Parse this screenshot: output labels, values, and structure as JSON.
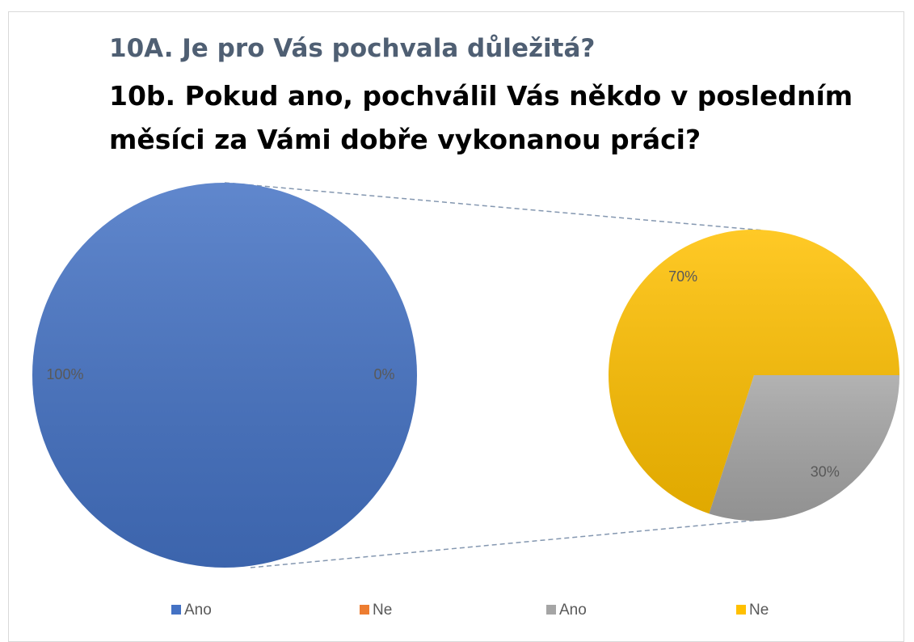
{
  "chart_data": [
    {
      "type": "pie",
      "title": "10A. Je pro Vás pochvala důležitá?",
      "categories": [
        "Ano",
        "Ne"
      ],
      "values": [
        100,
        0
      ],
      "value_labels": [
        "100%",
        "0%"
      ],
      "colors": [
        "#4472c4",
        "#ed7d31"
      ]
    },
    {
      "type": "pie",
      "title": "10b. Pokud ano, pochválil Vás někdo v posledním měsíci za Vámi dobře vykonanou práci?",
      "categories": [
        "Ano",
        "Ne"
      ],
      "values": [
        30,
        70
      ],
      "value_labels": [
        "30%",
        "70%"
      ],
      "colors": [
        "#a5a5a5",
        "#ffc000"
      ]
    }
  ]
}
